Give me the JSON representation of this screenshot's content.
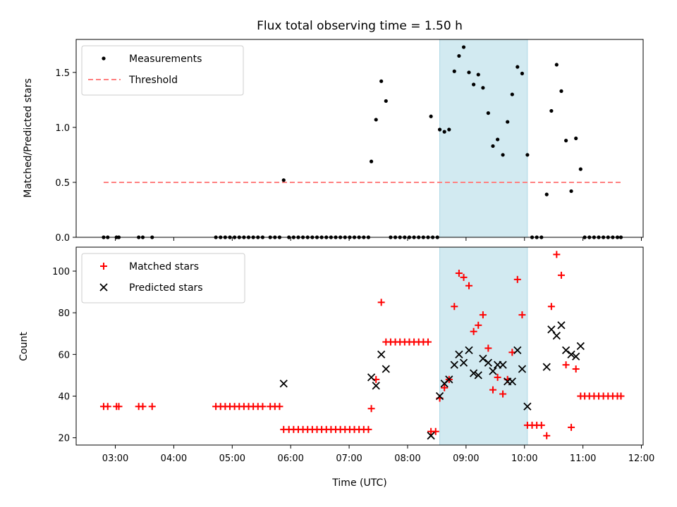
{
  "chart_data": {
    "title": "Flux total observing time = 1.50 h",
    "xlabel": "Time (UTC)",
    "x_ticks": [
      "03:00",
      "04:00",
      "05:00",
      "06:00",
      "07:00",
      "08:00",
      "09:00",
      "10:00",
      "11:00",
      "12:00"
    ],
    "x_tick_hours": [
      3,
      4,
      5,
      6,
      7,
      8,
      9,
      10,
      11,
      12
    ],
    "xlim_hours": [
      2.33,
      12.03
    ],
    "shaded_interval_hours": [
      8.55,
      10.05
    ],
    "shaded_color": "#add8e6",
    "panels": [
      {
        "type": "scatter",
        "ylabel": "Matched/Predicted stars",
        "ylim": [
          0,
          1.8
        ],
        "yticks": [
          0.0,
          0.5,
          1.0,
          1.5
        ],
        "ytick_labels": [
          "0.0",
          "0.5",
          "1.0",
          "1.5"
        ],
        "legend_position": "top-left",
        "threshold": {
          "name": "Threshold",
          "value": 0.5,
          "x_range_hours": [
            2.8,
            11.65
          ],
          "color": "#ff8080"
        },
        "series": [
          {
            "name": "Measurements",
            "marker": "dot",
            "color": "#000000",
            "points": [
              [
                2.8,
                0
              ],
              [
                2.87,
                0
              ],
              [
                3.02,
                0
              ],
              [
                3.06,
                0
              ],
              [
                3.4,
                0
              ],
              [
                3.47,
                0
              ],
              [
                3.63,
                0
              ],
              [
                4.72,
                0
              ],
              [
                4.8,
                0
              ],
              [
                4.88,
                0
              ],
              [
                4.96,
                0
              ],
              [
                5.04,
                0
              ],
              [
                5.12,
                0
              ],
              [
                5.2,
                0
              ],
              [
                5.28,
                0
              ],
              [
                5.36,
                0
              ],
              [
                5.44,
                0
              ],
              [
                5.52,
                0
              ],
              [
                5.65,
                0
              ],
              [
                5.73,
                0
              ],
              [
                5.81,
                0
              ],
              [
                5.88,
                0.52
              ],
              [
                5.97,
                0
              ],
              [
                6.05,
                0
              ],
              [
                6.13,
                0
              ],
              [
                6.21,
                0
              ],
              [
                6.29,
                0
              ],
              [
                6.37,
                0
              ],
              [
                6.45,
                0
              ],
              [
                6.53,
                0
              ],
              [
                6.61,
                0
              ],
              [
                6.69,
                0
              ],
              [
                6.77,
                0
              ],
              [
                6.85,
                0
              ],
              [
                6.93,
                0
              ],
              [
                7.01,
                0
              ],
              [
                7.09,
                0
              ],
              [
                7.17,
                0
              ],
              [
                7.25,
                0
              ],
              [
                7.33,
                0
              ],
              [
                7.38,
                0.69
              ],
              [
                7.46,
                1.07
              ],
              [
                7.55,
                1.42
              ],
              [
                7.63,
                1.24
              ],
              [
                7.71,
                0
              ],
              [
                7.79,
                0
              ],
              [
                7.87,
                0
              ],
              [
                7.95,
                0
              ],
              [
                8.03,
                0
              ],
              [
                8.11,
                0
              ],
              [
                8.19,
                0
              ],
              [
                8.27,
                0
              ],
              [
                8.35,
                0
              ],
              [
                8.43,
                0
              ],
              [
                8.51,
                0
              ],
              [
                8.4,
                1.1
              ],
              [
                8.55,
                0.98
              ],
              [
                8.63,
                0.96
              ],
              [
                8.71,
                0.98
              ],
              [
                8.8,
                1.51
              ],
              [
                8.88,
                1.65
              ],
              [
                8.96,
                1.73
              ],
              [
                9.05,
                1.5
              ],
              [
                9.13,
                1.39
              ],
              [
                9.21,
                1.48
              ],
              [
                9.29,
                1.36
              ],
              [
                9.38,
                1.13
              ],
              [
                9.46,
                0.83
              ],
              [
                9.54,
                0.89
              ],
              [
                9.63,
                0.75
              ],
              [
                9.71,
                1.05
              ],
              [
                9.79,
                1.3
              ],
              [
                9.88,
                1.55
              ],
              [
                9.96,
                1.49
              ],
              [
                10.05,
                0.75
              ],
              [
                10.13,
                0
              ],
              [
                10.21,
                0
              ],
              [
                10.29,
                0
              ],
              [
                10.38,
                0.39
              ],
              [
                10.46,
                1.15
              ],
              [
                10.55,
                1.57
              ],
              [
                10.63,
                1.33
              ],
              [
                10.71,
                0.88
              ],
              [
                10.8,
                0.42
              ],
              [
                10.88,
                0.9
              ],
              [
                10.96,
                0.62
              ],
              [
                11.03,
                0
              ],
              [
                11.11,
                0
              ],
              [
                11.19,
                0
              ],
              [
                11.27,
                0
              ],
              [
                11.35,
                0
              ],
              [
                11.43,
                0
              ],
              [
                11.51,
                0
              ],
              [
                11.59,
                0
              ],
              [
                11.65,
                0
              ]
            ]
          }
        ]
      },
      {
        "type": "scatter",
        "ylabel": "Count",
        "ylim": [
          16.5,
          111.5
        ],
        "yticks": [
          20,
          40,
          60,
          80,
          100
        ],
        "ytick_labels": [
          "20",
          "40",
          "60",
          "80",
          "100"
        ],
        "legend_position": "top-left",
        "series": [
          {
            "name": "Matched stars",
            "marker": "plus",
            "color": "#ff0000",
            "points": [
              [
                2.8,
                35
              ],
              [
                2.87,
                35
              ],
              [
                3.02,
                35
              ],
              [
                3.06,
                35
              ],
              [
                3.4,
                35
              ],
              [
                3.47,
                35
              ],
              [
                3.63,
                35
              ],
              [
                4.72,
                35
              ],
              [
                4.8,
                35
              ],
              [
                4.88,
                35
              ],
              [
                4.96,
                35
              ],
              [
                5.04,
                35
              ],
              [
                5.12,
                35
              ],
              [
                5.2,
                35
              ],
              [
                5.28,
                35
              ],
              [
                5.36,
                35
              ],
              [
                5.44,
                35
              ],
              [
                5.52,
                35
              ],
              [
                5.65,
                35
              ],
              [
                5.73,
                35
              ],
              [
                5.81,
                35
              ],
              [
                5.88,
                24
              ],
              [
                5.97,
                24
              ],
              [
                6.05,
                24
              ],
              [
                6.13,
                24
              ],
              [
                6.21,
                24
              ],
              [
                6.29,
                24
              ],
              [
                6.37,
                24
              ],
              [
                6.45,
                24
              ],
              [
                6.53,
                24
              ],
              [
                6.61,
                24
              ],
              [
                6.69,
                24
              ],
              [
                6.77,
                24
              ],
              [
                6.85,
                24
              ],
              [
                6.93,
                24
              ],
              [
                7.01,
                24
              ],
              [
                7.09,
                24
              ],
              [
                7.17,
                24
              ],
              [
                7.25,
                24
              ],
              [
                7.33,
                24
              ],
              [
                7.38,
                34
              ],
              [
                7.46,
                48
              ],
              [
                7.55,
                85
              ],
              [
                7.63,
                66
              ],
              [
                7.71,
                66
              ],
              [
                7.79,
                66
              ],
              [
                7.87,
                66
              ],
              [
                7.95,
                66
              ],
              [
                8.03,
                66
              ],
              [
                8.11,
                66
              ],
              [
                8.19,
                66
              ],
              [
                8.27,
                66
              ],
              [
                8.35,
                66
              ],
              [
                8.4,
                23
              ],
              [
                8.48,
                23
              ],
              [
                8.55,
                39
              ],
              [
                8.63,
                44
              ],
              [
                8.71,
                48
              ],
              [
                8.8,
                83
              ],
              [
                8.88,
                99
              ],
              [
                8.96,
                97
              ],
              [
                9.05,
                93
              ],
              [
                9.13,
                71
              ],
              [
                9.21,
                74
              ],
              [
                9.29,
                79
              ],
              [
                9.38,
                63
              ],
              [
                9.46,
                43
              ],
              [
                9.54,
                49
              ],
              [
                9.63,
                41
              ],
              [
                9.71,
                48
              ],
              [
                9.79,
                61
              ],
              [
                9.88,
                96
              ],
              [
                9.96,
                79
              ],
              [
                10.05,
                26
              ],
              [
                10.13,
                26
              ],
              [
                10.21,
                26
              ],
              [
                10.29,
                26
              ],
              [
                10.38,
                21
              ],
              [
                10.46,
                83
              ],
              [
                10.55,
                108
              ],
              [
                10.63,
                98
              ],
              [
                10.71,
                55
              ],
              [
                10.8,
                25
              ],
              [
                10.88,
                53
              ],
              [
                10.96,
                40
              ],
              [
                11.03,
                40
              ],
              [
                11.11,
                40
              ],
              [
                11.19,
                40
              ],
              [
                11.27,
                40
              ],
              [
                11.35,
                40
              ],
              [
                11.43,
                40
              ],
              [
                11.51,
                40
              ],
              [
                11.59,
                40
              ],
              [
                11.65,
                40
              ]
            ]
          },
          {
            "name": "Predicted stars",
            "marker": "x",
            "color": "#000000",
            "points": [
              [
                5.88,
                46
              ],
              [
                7.38,
                49
              ],
              [
                7.46,
                45
              ],
              [
                7.55,
                60
              ],
              [
                7.63,
                53
              ],
              [
                8.4,
                21
              ],
              [
                8.55,
                40
              ],
              [
                8.63,
                46
              ],
              [
                8.71,
                48
              ],
              [
                8.8,
                55
              ],
              [
                8.88,
                60
              ],
              [
                8.96,
                56
              ],
              [
                9.05,
                62
              ],
              [
                9.13,
                51
              ],
              [
                9.21,
                50
              ],
              [
                9.29,
                58
              ],
              [
                9.38,
                56
              ],
              [
                9.46,
                52
              ],
              [
                9.54,
                55
              ],
              [
                9.63,
                55
              ],
              [
                9.71,
                47
              ],
              [
                9.79,
                47
              ],
              [
                9.88,
                62
              ],
              [
                9.96,
                53
              ],
              [
                10.05,
                35
              ],
              [
                10.38,
                54
              ],
              [
                10.46,
                72
              ],
              [
                10.55,
                69
              ],
              [
                10.63,
                74
              ],
              [
                10.71,
                62
              ],
              [
                10.8,
                60
              ],
              [
                10.88,
                59
              ],
              [
                10.96,
                64
              ]
            ]
          }
        ]
      }
    ]
  }
}
